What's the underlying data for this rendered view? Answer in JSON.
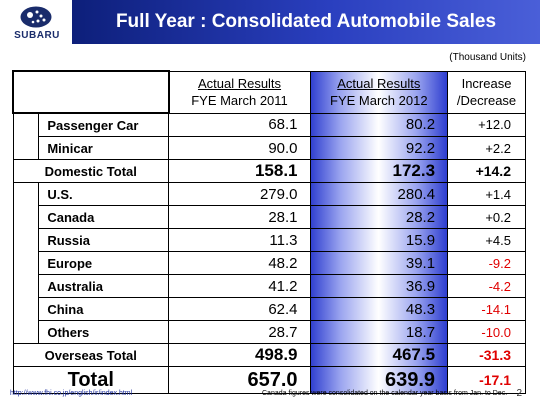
{
  "header": {
    "logo_text": "SUBARU",
    "title": "Full Year : Consolidated Automobile Sales"
  },
  "units": "(Thousand Units)",
  "table": {
    "columns": [
      {
        "line1": "Actual Results",
        "line2": "FYE March 2011"
      },
      {
        "line1": "Actual Results",
        "line2": "FYE March 2012"
      },
      {
        "line1": "Increase",
        "line2": "/Decrease"
      }
    ],
    "domestic_rows": [
      {
        "label": "Passenger Car",
        "fy2011": "68.1",
        "fy2012": "80.2",
        "change": "+12.0"
      },
      {
        "label": "Minicar",
        "fy2011": "90.0",
        "fy2012": "92.2",
        "change": "+2.2"
      }
    ],
    "domestic_total": {
      "label": "Domestic Total",
      "fy2011": "158.1",
      "fy2012": "172.3",
      "change": "+14.2"
    },
    "overseas_rows": [
      {
        "label": "U.S.",
        "fy2011": "279.0",
        "fy2012": "280.4",
        "change": "+1.4"
      },
      {
        "label": "Canada",
        "fy2011": "28.1",
        "fy2012": "28.2",
        "change": "+0.2"
      },
      {
        "label": "Russia",
        "fy2011": "11.3",
        "fy2012": "15.9",
        "change": "+4.5"
      },
      {
        "label": "Europe",
        "fy2011": "48.2",
        "fy2012": "39.1",
        "change": "-9.2"
      },
      {
        "label": "Australia",
        "fy2011": "41.2",
        "fy2012": "36.9",
        "change": "-4.2"
      },
      {
        "label": "China",
        "fy2011": "62.4",
        "fy2012": "48.3",
        "change": "-14.1"
      },
      {
        "label": "Others",
        "fy2011": "28.7",
        "fy2012": "18.7",
        "change": "-10.0"
      }
    ],
    "overseas_total": {
      "label": "Overseas Total",
      "fy2011": "498.9",
      "fy2012": "467.5",
      "change": "-31.3"
    },
    "grand_total": {
      "label": "Total",
      "fy2011": "657.0",
      "fy2012": "639.9",
      "change": "-17.1"
    }
  },
  "footer": {
    "url": "http://www.fhi.co.jp/english/ir/index.html",
    "note": "Canada figures were consolidated on the calendar year basis from Jan. to Dec.",
    "page": "2"
  },
  "colors": {
    "title_bar": "#1a2c9b",
    "negative": "#e00000",
    "highlight": "#2f3fd0"
  }
}
